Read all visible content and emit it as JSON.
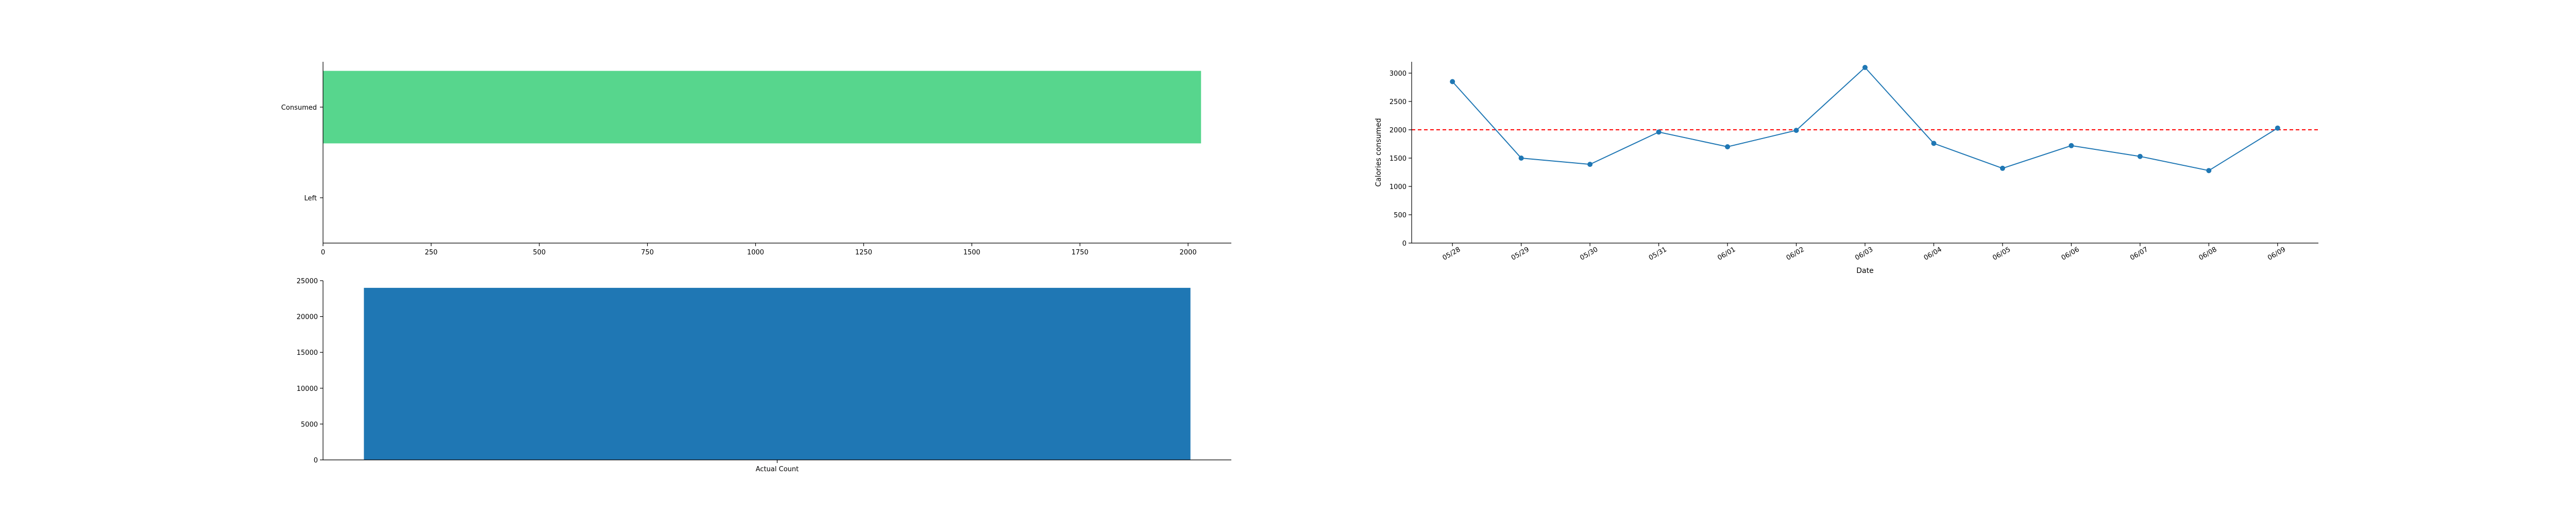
{
  "colors": {
    "consumed_bar": "#57d68d",
    "count_bar": "#1f77b4",
    "line": "#1f77b4",
    "goal_line": "#ff0000",
    "axis": "#000000"
  },
  "chart_data": [
    {
      "type": "bar",
      "orientation": "horizontal",
      "categories": [
        "Consumed",
        "Left"
      ],
      "values": [
        2030,
        0
      ],
      "xlim": [
        0,
        2100
      ],
      "xticks": [
        0,
        250,
        500,
        750,
        1000,
        1250,
        1500,
        1750,
        2000
      ],
      "xlabel": "",
      "ylabel": "",
      "title": ""
    },
    {
      "type": "line",
      "x": [
        "05/28",
        "05/29",
        "05/30",
        "05/31",
        "06/01",
        "06/02",
        "06/03",
        "06/04",
        "06/05",
        "06/06",
        "06/07",
        "06/08",
        "06/09"
      ],
      "values": [
        2850,
        1500,
        1390,
        1960,
        1700,
        1990,
        3100,
        1760,
        1320,
        1720,
        1530,
        1280,
        2030
      ],
      "reference_line": {
        "y": 2000,
        "style": "dashed"
      },
      "ylim": [
        0,
        3200
      ],
      "yticks": [
        0,
        500,
        1000,
        1500,
        2000,
        2500,
        3000
      ],
      "xlabel": "Date",
      "ylabel": "Calories consumed",
      "title": ""
    },
    {
      "type": "bar",
      "orientation": "vertical",
      "categories": [
        "Actual Count"
      ],
      "values": [
        24000
      ],
      "ylim": [
        0,
        25000
      ],
      "yticks": [
        0,
        5000,
        10000,
        15000,
        20000,
        25000
      ],
      "xlabel": "",
      "ylabel": "",
      "title": ""
    }
  ]
}
